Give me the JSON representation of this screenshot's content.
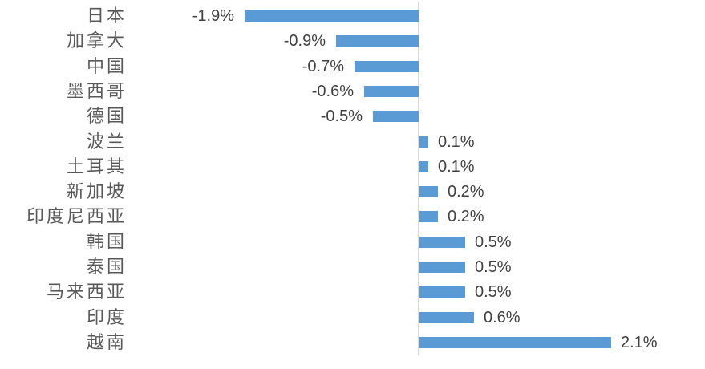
{
  "chart_data": {
    "type": "bar",
    "orientation": "horizontal",
    "title": "",
    "xlabel": "",
    "ylabel": "",
    "grid": false,
    "legend": "none",
    "xlim": [
      -1.9,
      2.1
    ],
    "unit": "%",
    "categories": [
      "日本",
      "加拿大",
      "中国",
      "墨西哥",
      "德国",
      "波兰",
      "土耳其",
      "新加坡",
      "印度尼西亚",
      "韩国",
      "泰国",
      "马来西亚",
      "印度",
      "越南"
    ],
    "values": [
      -1.9,
      -0.9,
      -0.7,
      -0.6,
      -0.5,
      0.1,
      0.1,
      0.2,
      0.2,
      0.5,
      0.5,
      0.5,
      0.6,
      2.1
    ],
    "value_labels": [
      "-1.9%",
      "-0.9%",
      "-0.7%",
      "-0.6%",
      "-0.5%",
      "0.1%",
      "0.1%",
      "0.2%",
      "0.2%",
      "0.5%",
      "0.5%",
      "0.5%",
      "0.6%",
      "2.1%"
    ],
    "colors": {
      "bar": "#5b9bd5",
      "axis_line": "#d9d9d9",
      "category_text": "#595959",
      "value_text": "#404040",
      "background": "#ffffff"
    }
  }
}
